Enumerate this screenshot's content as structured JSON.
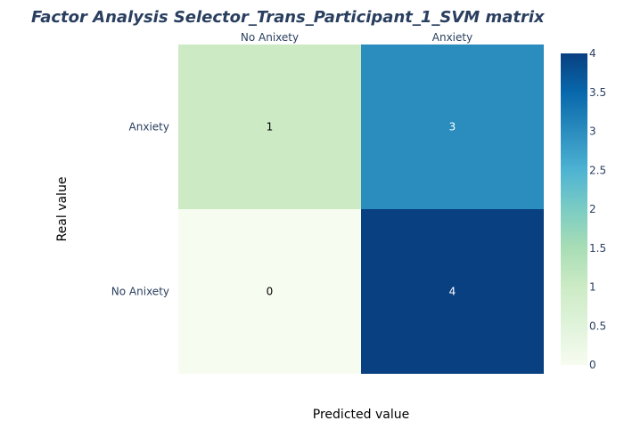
{
  "chart_data": {
    "type": "heatmap",
    "title": "Factor Analysis Selector_Trans_Participant_1_SVM matrix",
    "xlabel": "Predicted value",
    "ylabel": "Real value",
    "x_categories": [
      "No Anixety",
      "Anxiety"
    ],
    "y_categories": [
      "Anxiety",
      "No Anixety"
    ],
    "values": [
      [
        1,
        3
      ],
      [
        0,
        4
      ]
    ],
    "zlim": [
      0,
      4
    ],
    "colorbar_ticks": [
      "0",
      "0.5",
      "1",
      "1.5",
      "2",
      "2.5",
      "3",
      "3.5",
      "4"
    ],
    "colorscale": "GnBu",
    "x_axis_side": "top"
  }
}
